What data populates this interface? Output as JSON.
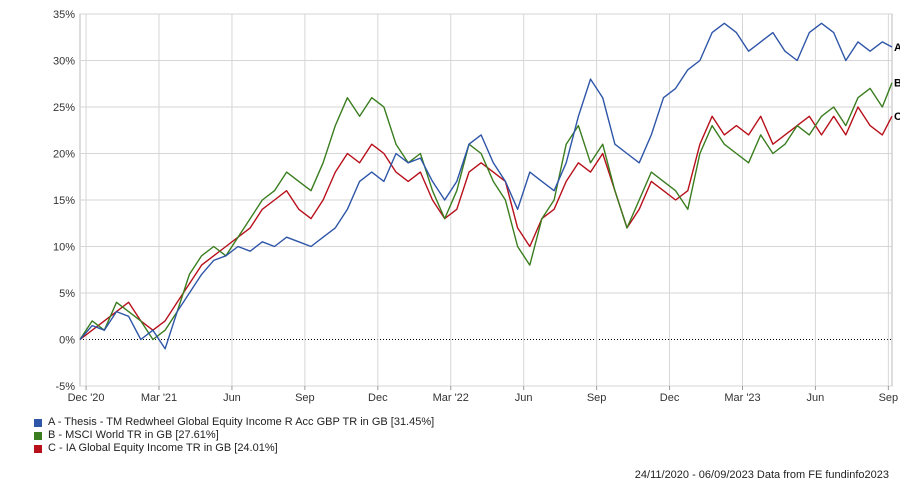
{
  "chart_data": {
    "type": "line",
    "ylim": [
      -5,
      35
    ],
    "y_ticks": [
      -5,
      0,
      5,
      10,
      15,
      20,
      25,
      30,
      35
    ],
    "y_tick_labels": [
      "-5%",
      "0%",
      "5%",
      "10%",
      "15%",
      "20%",
      "25%",
      "30%",
      "35%"
    ],
    "x_tick_labels": [
      "Dec '20",
      "Mar '21",
      "Jun",
      "Sep",
      "Dec",
      "Mar '22",
      "Jun",
      "Sep",
      "Dec",
      "Mar '23",
      "Jun",
      "Sep"
    ],
    "x_ticks": [
      0.25,
      3.25,
      6.25,
      9.25,
      12.25,
      15.25,
      18.25,
      21.25,
      24.25,
      27.25,
      30.25,
      33.25
    ],
    "x_range": [
      0,
      33.4
    ],
    "grid": true,
    "series": [
      {
        "name": "A - Thesis - TM Redwheel Global Equity Income R Acc GBP TR in GB [31.45%]",
        "end_label": "A",
        "color": "#2e55a8",
        "x": [
          0,
          0.5,
          1,
          1.5,
          2,
          2.5,
          3,
          3.5,
          4,
          4.5,
          5,
          5.5,
          6,
          6.5,
          7,
          7.5,
          8,
          8.5,
          9,
          9.5,
          10,
          10.5,
          11,
          11.5,
          12,
          12.5,
          13,
          13.5,
          14,
          14.5,
          15,
          15.5,
          16,
          16.5,
          17,
          17.5,
          18,
          18.5,
          19,
          19.5,
          20,
          20.5,
          21,
          21.5,
          22,
          22.5,
          23,
          23.5,
          24,
          24.5,
          25,
          25.5,
          26,
          26.5,
          27,
          27.5,
          28,
          28.5,
          29,
          29.5,
          30,
          30.5,
          31,
          31.5,
          32,
          32.5,
          33,
          33.4
        ],
        "values": [
          0,
          1.5,
          1,
          3,
          2.5,
          0,
          1,
          -1,
          3,
          5,
          7,
          8.5,
          9,
          10,
          9.5,
          10.5,
          10,
          11,
          10.5,
          10,
          11,
          12,
          14,
          17,
          18,
          17,
          20,
          19,
          19.5,
          17,
          15,
          17,
          21,
          22,
          19,
          17,
          14,
          18,
          17,
          16,
          19,
          24,
          28,
          26,
          21,
          20,
          19,
          22,
          26,
          27,
          29,
          30,
          33,
          34,
          33,
          31,
          32,
          33,
          31,
          30,
          33,
          34,
          33,
          30,
          32,
          31,
          32,
          31.45
        ]
      },
      {
        "name": "B - MSCI World TR in GB [27.61%]",
        "end_label": "B",
        "color": "#3a7d1f",
        "x": [
          0,
          0.5,
          1,
          1.5,
          2,
          2.5,
          3,
          3.5,
          4,
          4.5,
          5,
          5.5,
          6,
          6.5,
          7,
          7.5,
          8,
          8.5,
          9,
          9.5,
          10,
          10.5,
          11,
          11.5,
          12,
          12.5,
          13,
          13.5,
          14,
          14.5,
          15,
          15.5,
          16,
          16.5,
          17,
          17.5,
          18,
          18.5,
          19,
          19.5,
          20,
          20.5,
          21,
          21.5,
          22,
          22.5,
          23,
          23.5,
          24,
          24.5,
          25,
          25.5,
          26,
          26.5,
          27,
          27.5,
          28,
          28.5,
          29,
          29.5,
          30,
          30.5,
          31,
          31.5,
          32,
          32.5,
          33,
          33.4
        ],
        "values": [
          0,
          2,
          1,
          4,
          3,
          2,
          0,
          1,
          3,
          7,
          9,
          10,
          9,
          11,
          13,
          15,
          16,
          18,
          17,
          16,
          19,
          23,
          26,
          24,
          26,
          25,
          21,
          19,
          20,
          16,
          13,
          16,
          21,
          20,
          17,
          15,
          10,
          8,
          13,
          15,
          21,
          23,
          19,
          21,
          16,
          12,
          15,
          18,
          17,
          16,
          14,
          20,
          23,
          21,
          20,
          19,
          22,
          20,
          21,
          23,
          22,
          24,
          25,
          23,
          26,
          27,
          25,
          27.61
        ]
      },
      {
        "name": "C - IA Global Equity Income TR in GB [24.01%]",
        "end_label": "C",
        "color": "#b8101b",
        "x": [
          0,
          0.5,
          1,
          1.5,
          2,
          2.5,
          3,
          3.5,
          4,
          4.5,
          5,
          5.5,
          6,
          6.5,
          7,
          7.5,
          8,
          8.5,
          9,
          9.5,
          10,
          10.5,
          11,
          11.5,
          12,
          12.5,
          13,
          13.5,
          14,
          14.5,
          15,
          15.5,
          16,
          16.5,
          17,
          17.5,
          18,
          18.5,
          19,
          19.5,
          20,
          20.5,
          21,
          21.5,
          22,
          22.5,
          23,
          23.5,
          24,
          24.5,
          25,
          25.5,
          26,
          26.5,
          27,
          27.5,
          28,
          28.5,
          29,
          29.5,
          30,
          30.5,
          31,
          31.5,
          32,
          32.5,
          33,
          33.4
        ],
        "values": [
          0,
          1,
          2,
          3,
          4,
          2,
          1,
          2,
          4,
          6,
          8,
          9,
          10,
          11,
          12,
          14,
          15,
          16,
          14,
          13,
          15,
          18,
          20,
          19,
          21,
          20,
          18,
          17,
          18,
          15,
          13,
          14,
          18,
          19,
          18,
          17,
          12,
          10,
          13,
          14,
          17,
          19,
          18,
          20,
          16,
          12,
          14,
          17,
          16,
          15,
          16,
          21,
          24,
          22,
          23,
          22,
          24,
          21,
          22,
          23,
          24,
          22,
          24,
          22,
          25,
          23,
          22,
          24.01
        ]
      }
    ]
  },
  "footer": "24/11/2020 - 06/09/2023 Data from FE fundinfo2023"
}
